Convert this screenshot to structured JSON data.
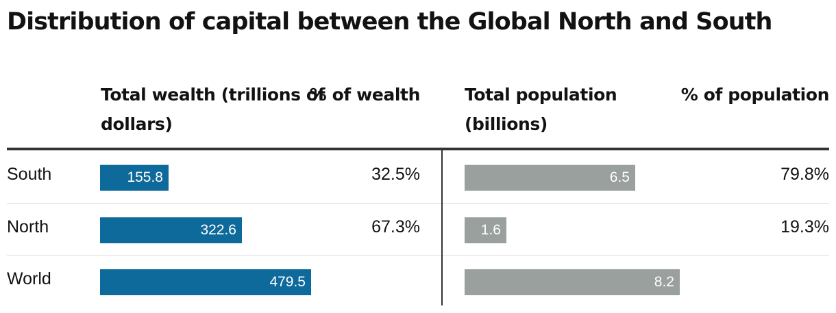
{
  "title": "Distribution of capital between the Global North and South",
  "headers": {
    "wealth": "Total wealth (trillions of dollars)",
    "pct_wealth": "% of wealth",
    "population": "Total population (billions)",
    "pct_population": "% of population"
  },
  "colors": {
    "wealth_bar": "#0f6a9c",
    "population_bar": "#9aa09e"
  },
  "chart_data": {
    "type": "bar",
    "title": "Distribution of capital between the Global North and South",
    "categories": [
      "South",
      "North",
      "World"
    ],
    "series": [
      {
        "name": "Total wealth (trillions of dollars)",
        "values": [
          155.8,
          322.6,
          479.5
        ],
        "labels": [
          "155.8",
          "322.6",
          "479.5"
        ],
        "max": 479.5
      },
      {
        "name": "Total population (billions)",
        "values": [
          6.5,
          1.6,
          8.2
        ],
        "labels": [
          "6.5",
          "1.6",
          "8.2"
        ],
        "max": 8.2
      }
    ],
    "pct_wealth": [
      "32.5%",
      "67.3%",
      ""
    ],
    "pct_population": [
      "79.8%",
      "19.3%",
      ""
    ]
  }
}
